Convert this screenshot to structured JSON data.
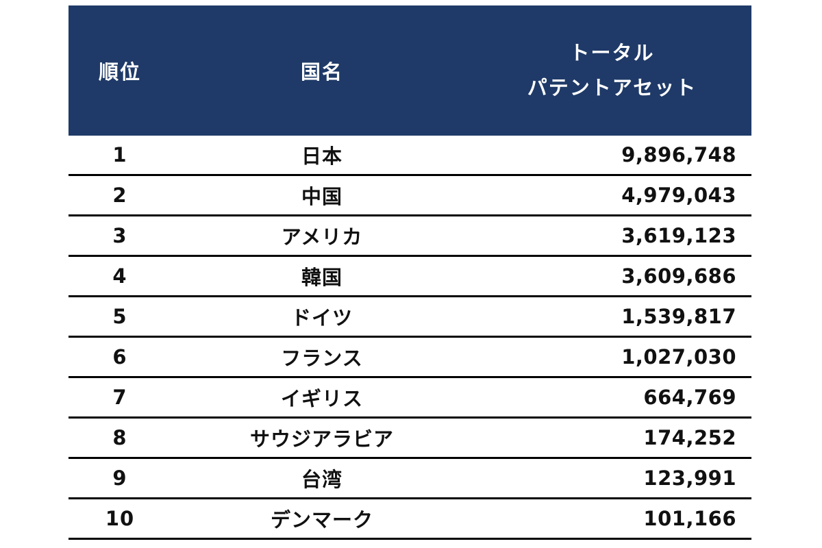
{
  "colors": {
    "header_bg": "#1f3a68",
    "header_text": "#ffffff",
    "body_text": "#111111",
    "row_divider": "#000000",
    "page_bg": "#ffffff"
  },
  "chart_data": {
    "type": "table",
    "columns": {
      "rank": "順位",
      "country": "国名",
      "total_line1": "トータル",
      "total_line2": "パテントアセット"
    },
    "rows": [
      {
        "rank": "1",
        "country": "日本",
        "total": "9,896,748"
      },
      {
        "rank": "2",
        "country": "中国",
        "total": "4,979,043"
      },
      {
        "rank": "3",
        "country": "アメリカ",
        "total": "3,619,123"
      },
      {
        "rank": "4",
        "country": "韓国",
        "total": "3,609,686"
      },
      {
        "rank": "5",
        "country": "ドイツ",
        "total": "1,539,817"
      },
      {
        "rank": "6",
        "country": "フランス",
        "total": "1,027,030"
      },
      {
        "rank": "7",
        "country": "イギリス",
        "total": "664,769"
      },
      {
        "rank": "8",
        "country": "サウジアラビア",
        "total": "174,252"
      },
      {
        "rank": "9",
        "country": "台湾",
        "total": "123,991"
      },
      {
        "rank": "10",
        "country": "デンマーク",
        "total": "101,166"
      }
    ]
  }
}
